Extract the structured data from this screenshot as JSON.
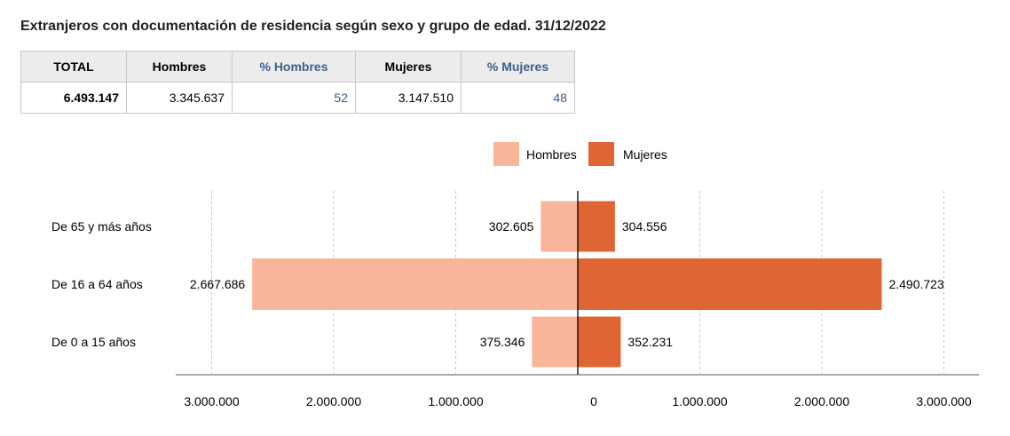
{
  "title": "Extranjeros con documentación de residencia según sexo y grupo de edad. 31/12/2022",
  "summary_table": {
    "headers": [
      "TOTAL",
      "Hombres",
      "% Hombres",
      "Mujeres",
      "% Mujeres"
    ],
    "values": [
      "6.493.147",
      "3.345.637",
      "52",
      "3.147.510",
      "48"
    ]
  },
  "colors": {
    "hombres": "#f8b59a",
    "mujeres": "#e06534"
  },
  "chart_data": {
    "type": "bar",
    "orientation": "horizontal-population-pyramid",
    "categories": [
      "De 65 y más años",
      "De 16 a 64 años",
      "De 0 a 15 años"
    ],
    "series": [
      {
        "name": "Hombres",
        "values": [
          302605,
          2667686,
          375346
        ],
        "labels": [
          "302.605",
          "2.667.686",
          "375.346"
        ]
      },
      {
        "name": "Mujeres",
        "values": [
          304556,
          2490723,
          352231
        ],
        "labels": [
          "304.556",
          "2.490.723",
          "352.231"
        ]
      }
    ],
    "xlim": [
      -3300000,
      3300000
    ],
    "xticks": [
      -3000000,
      -2000000,
      -1000000,
      0,
      1000000,
      2000000,
      3000000
    ],
    "xtick_labels": [
      "3.000.000",
      "2.000.000",
      "1.000.000",
      "0",
      "1.000.000",
      "2.000.000",
      "3.000.000"
    ],
    "grid": true,
    "legend_position": "top-center"
  }
}
